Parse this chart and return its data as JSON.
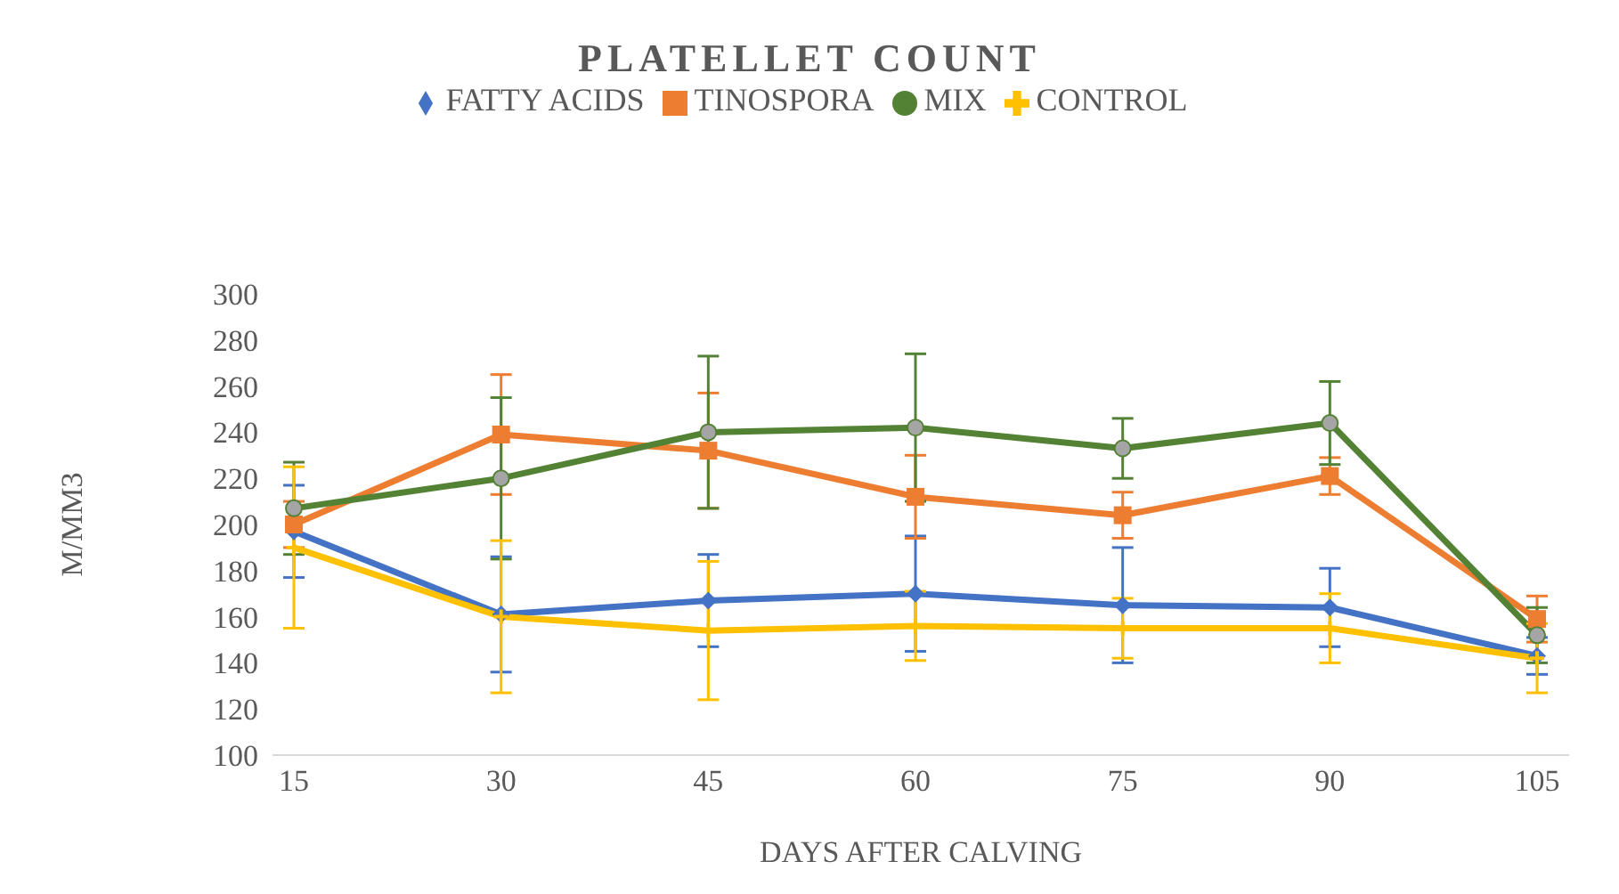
{
  "chart_data": {
    "type": "line",
    "title": "PLATELLET COUNT",
    "xlabel": "DAYS AFTER CALVING",
    "ylabel": "M/MM3",
    "categories": [
      "15",
      "30",
      "45",
      "60",
      "75",
      "90",
      "105"
    ],
    "series": [
      {
        "name": "FATTY ACIDS",
        "color": "#4472c4",
        "marker": "diamond",
        "values": [
          197,
          161,
          167,
          170,
          165,
          164,
          143
        ],
        "errors": [
          20,
          25,
          20,
          25,
          25,
          17,
          8
        ]
      },
      {
        "name": "TINOSPORA",
        "color": "#ed7d31",
        "marker": "square",
        "values": [
          200,
          239,
          232,
          212,
          204,
          221,
          159
        ],
        "errors": [
          10,
          26,
          25,
          18,
          10,
          8,
          10
        ]
      },
      {
        "name": "MIX",
        "color": "#548235",
        "marker": "circle",
        "values": [
          207,
          220,
          240,
          242,
          233,
          244,
          152
        ],
        "errors": [
          20,
          35,
          33,
          32,
          13,
          18,
          12
        ]
      },
      {
        "name": "CONTROL",
        "color": "#ffc000",
        "marker": "cross",
        "values": [
          190,
          160,
          154,
          156,
          155,
          155,
          142
        ],
        "errors": [
          35,
          33,
          30,
          15,
          13,
          15,
          15
        ]
      }
    ],
    "ylim": [
      100,
      300
    ],
    "yticks": [
      100,
      120,
      140,
      160,
      180,
      200,
      220,
      240,
      260,
      280,
      300
    ],
    "grid": false,
    "legend": "top",
    "line_style": "solid"
  }
}
